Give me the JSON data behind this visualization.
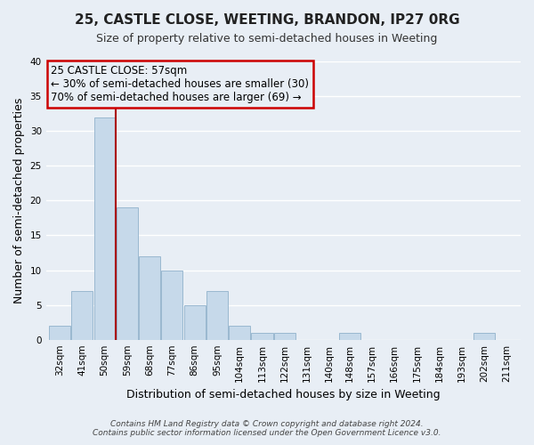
{
  "title": "25, CASTLE CLOSE, WEETING, BRANDON, IP27 0RG",
  "subtitle": "Size of property relative to semi-detached houses in Weeting",
  "xlabel": "Distribution of semi-detached houses by size in Weeting",
  "ylabel": "Number of semi-detached properties",
  "bin_labels": [
    "32sqm",
    "41sqm",
    "50sqm",
    "59sqm",
    "68sqm",
    "77sqm",
    "86sqm",
    "95sqm",
    "104sqm",
    "113sqm",
    "122sqm",
    "131sqm",
    "140sqm",
    "148sqm",
    "157sqm",
    "166sqm",
    "175sqm",
    "184sqm",
    "193sqm",
    "202sqm",
    "211sqm"
  ],
  "bin_left_edges": [
    32,
    41,
    50,
    59,
    68,
    77,
    86,
    95,
    104,
    113,
    122,
    131,
    140,
    148,
    157,
    166,
    175,
    184,
    193,
    202,
    211
  ],
  "bin_width": 9,
  "counts": [
    2,
    7,
    32,
    19,
    12,
    10,
    5,
    7,
    2,
    1,
    1,
    0,
    0,
    1,
    0,
    0,
    0,
    0,
    0,
    1,
    0
  ],
  "bar_color": "#c6d9ea",
  "bar_edge_color": "#9ab8d0",
  "property_label": "25 CASTLE CLOSE: 57sqm",
  "pct_smaller": 30,
  "pct_larger": 70,
  "n_smaller": 30,
  "n_larger": 69,
  "vline_color": "#aa0000",
  "annotation_box_edge_color": "#cc0000",
  "ylim": [
    0,
    40
  ],
  "yticks": [
    0,
    5,
    10,
    15,
    20,
    25,
    30,
    35,
    40
  ],
  "vline_x": 59,
  "footer_line1": "Contains HM Land Registry data © Crown copyright and database right 2024.",
  "footer_line2": "Contains public sector information licensed under the Open Government Licence v3.0.",
  "fig_bg_color": "#e8eef5",
  "plot_bg_color": "#e8eef5",
  "grid_color": "#ffffff",
  "title_fontsize": 11,
  "subtitle_fontsize": 9,
  "axis_label_fontsize": 9,
  "tick_fontsize": 7.5,
  "annotation_fontsize": 8.5,
  "footer_fontsize": 6.5
}
